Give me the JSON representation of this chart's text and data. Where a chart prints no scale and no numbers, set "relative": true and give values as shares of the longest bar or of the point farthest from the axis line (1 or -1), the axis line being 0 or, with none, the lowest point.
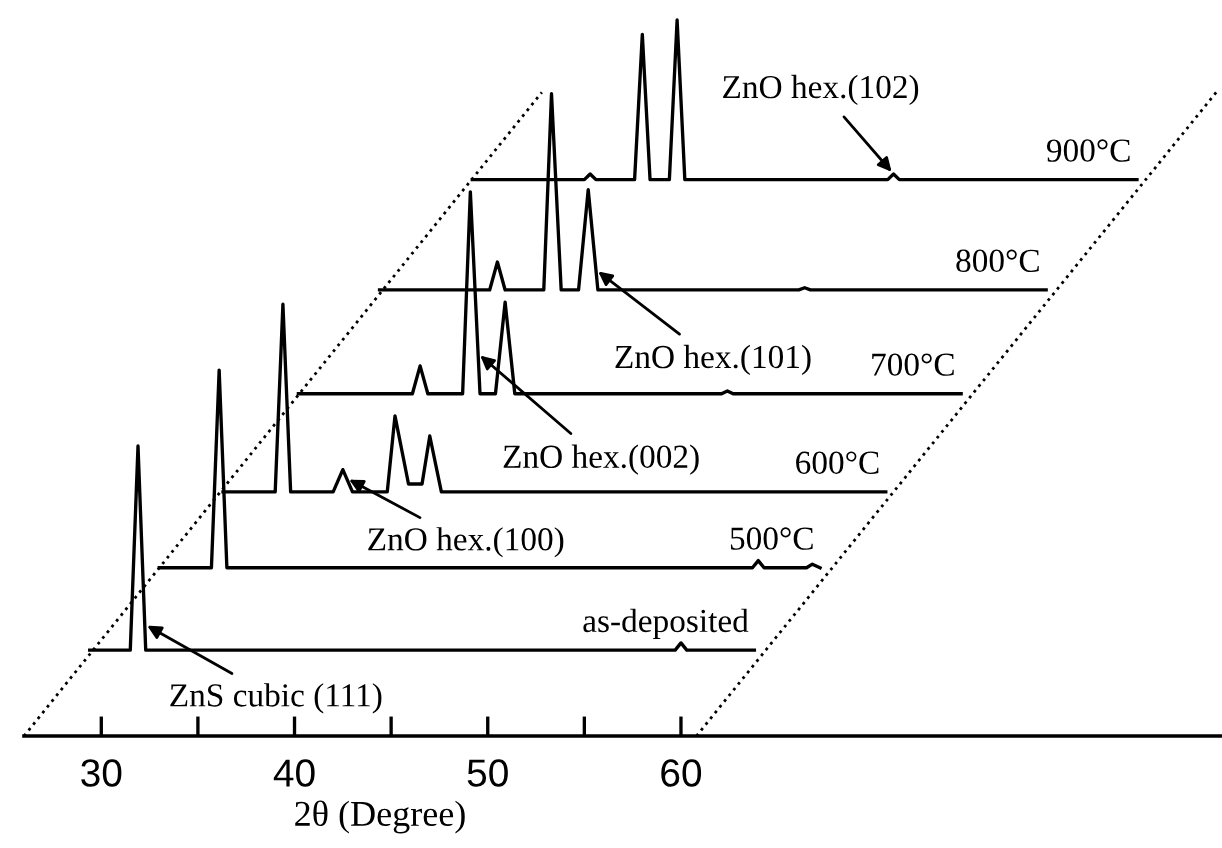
{
  "chart_data": {
    "type": "line",
    "relative": true,
    "xlabel": "2θ (Degree)",
    "xlim": [
      26,
      88
    ],
    "xticks": [
      30,
      {
        "value": 35,
        "label": null
      },
      40,
      {
        "value": 45,
        "label": null
      },
      50,
      {
        "value": 55,
        "label": null
      },
      60
    ],
    "tick_labels": "x",
    "grid": false,
    "legend": false,
    "marker": "none",
    "line_style": "solid",
    "series": [
      {
        "name": "as-deposited",
        "color": "#000000",
        "x": [
          29.4,
          31.5,
          31.9,
          32.3,
          59.7,
          60.0,
          60.3,
          63.8
        ],
        "values": [
          0.12,
          0.12,
          0.405,
          0.12,
          0.12,
          0.13,
          0.12,
          0.12
        ]
      },
      {
        "name": "500°C",
        "color": "#000000",
        "x": [
          33.0,
          35.7,
          36.1,
          36.5,
          63.7,
          64.0,
          64.3,
          66.5,
          66.8,
          67.2
        ],
        "values": [
          0.235,
          0.235,
          0.511,
          0.235,
          0.235,
          0.245,
          0.235,
          0.235,
          0.24,
          0.235
        ]
      },
      {
        "name": "600°C",
        "color": "#000000",
        "x": [
          36.3,
          39.0,
          39.4,
          39.8,
          42.0,
          42.5,
          43.0,
          44.8,
          45.2,
          45.9,
          46.6,
          47.0,
          47.6,
          70.6
        ],
        "values": [
          0.341,
          0.341,
          0.603,
          0.341,
          0.341,
          0.372,
          0.341,
          0.341,
          0.447,
          0.352,
          0.352,
          0.419,
          0.341,
          0.341
        ]
      },
      {
        "name": "700°C",
        "color": "#000000",
        "x": [
          40.2,
          46.1,
          46.5,
          46.9,
          48.7,
          49.1,
          49.6,
          50.4,
          50.9,
          51.4,
          62.1,
          62.4,
          62.7,
          74.5
        ],
        "values": [
          0.478,
          0.478,
          0.517,
          0.478,
          0.478,
          0.76,
          0.478,
          0.478,
          0.606,
          0.478,
          0.478,
          0.482,
          0.478,
          0.478
        ]
      },
      {
        "name": "800°C",
        "color": "#000000",
        "x": [
          44.4,
          50.1,
          50.5,
          50.9,
          52.9,
          53.3,
          53.8,
          54.7,
          55.2,
          55.7,
          66.1,
          66.4,
          66.7,
          78.9
        ],
        "values": [
          0.623,
          0.623,
          0.662,
          0.623,
          0.623,
          0.897,
          0.623,
          0.623,
          0.763,
          0.623,
          0.623,
          0.626,
          0.623,
          0.623
        ]
      },
      {
        "name": "900°C",
        "color": "#000000",
        "x": [
          49.2,
          55.0,
          55.3,
          55.6,
          57.6,
          58.0,
          58.4,
          59.4,
          59.8,
          60.2,
          70.7,
          71.0,
          71.3,
          83.6
        ],
        "values": [
          0.777,
          0.777,
          0.785,
          0.777,
          0.777,
          0.98,
          0.777,
          0.777,
          1.0,
          0.777,
          0.777,
          0.785,
          0.777,
          0.777
        ]
      },
      {
        "color": "#000000",
        "line_style": "dotted",
        "x": [
          26,
          52.8
        ],
        "values": [
          0,
          0.899
        ]
      },
      {
        "color": "#000000",
        "line_style": "dotted",
        "x": [
          60.8,
          87.7
        ],
        "values": [
          0,
          0.899
        ]
      }
    ],
    "annotations": [
      {
        "text": "ZnO hex.(102)",
        "x": 71.0,
        "y": 0.785
      },
      {
        "text": "ZnO hex.(101)",
        "x": 55.6,
        "y": 0.651
      },
      {
        "text": "ZnO hex.(002)",
        "x": 49.5,
        "y": 0.534
      },
      {
        "text": "ZnO hex.(100)",
        "x": 42.7,
        "y": 0.36
      },
      {
        "text": "ZnS cubic (111)",
        "x": 32.25,
        "y": 0.156
      }
    ]
  }
}
